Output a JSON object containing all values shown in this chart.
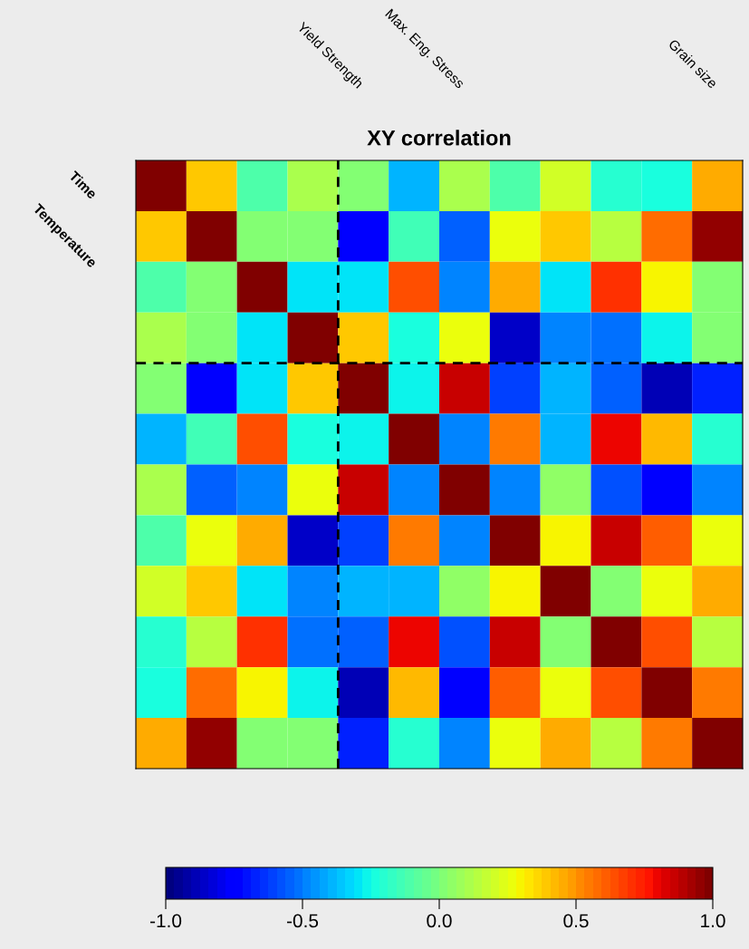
{
  "chart_data": {
    "type": "heatmap",
    "title": "XY correlation",
    "categories": [
      null,
      null,
      null,
      "Yield Strength",
      null,
      "Max. Eng. Stress",
      null,
      null,
      null,
      null,
      "Grain size",
      null
    ],
    "y_categories": [
      "Time",
      "Temperature",
      null,
      null,
      null,
      null,
      null,
      null,
      null,
      null,
      null,
      null
    ],
    "cells": [
      [
        1.0,
        0.4,
        -0.1,
        0.1,
        0.0,
        -0.4,
        0.1,
        -0.1,
        0.2,
        -0.2,
        -0.22,
        0.45
      ],
      [
        0.4,
        1.0,
        0.0,
        0.0,
        -0.72,
        -0.15,
        -0.55,
        0.25,
        0.4,
        0.15,
        0.58,
        0.95
      ],
      [
        -0.1,
        0.0,
        1.0,
        -0.3,
        -0.3,
        0.65,
        -0.5,
        0.45,
        -0.3,
        0.7,
        0.3,
        0.0
      ],
      [
        0.1,
        0.0,
        -0.3,
        1.0,
        0.4,
        -0.25,
        0.25,
        -0.85,
        -0.5,
        -0.52,
        -0.27,
        0.0
      ],
      [
        0.0,
        -0.72,
        -0.3,
        0.4,
        1.0,
        -0.27,
        0.85,
        -0.6,
        -0.4,
        -0.55,
        -0.88,
        -0.68
      ],
      [
        -0.4,
        -0.15,
        0.65,
        -0.25,
        -0.27,
        1.0,
        -0.5,
        0.55,
        -0.4,
        0.8,
        0.42,
        -0.2
      ],
      [
        0.1,
        -0.55,
        -0.5,
        0.25,
        0.85,
        -0.5,
        1.0,
        -0.5,
        0.05,
        -0.58,
        -0.78,
        -0.5
      ],
      [
        -0.1,
        0.25,
        0.45,
        -0.85,
        -0.6,
        0.55,
        -0.5,
        1.0,
        0.3,
        0.85,
        0.6,
        0.25
      ],
      [
        0.2,
        0.4,
        -0.3,
        -0.5,
        -0.4,
        -0.4,
        0.05,
        0.3,
        1.0,
        0.0,
        0.25,
        0.45
      ],
      [
        -0.2,
        0.15,
        0.7,
        -0.52,
        -0.55,
        0.8,
        -0.58,
        0.85,
        0.0,
        1.0,
        0.65,
        0.15
      ],
      [
        -0.22,
        0.58,
        0.3,
        -0.27,
        -0.88,
        0.42,
        -0.78,
        0.6,
        0.25,
        0.65,
        1.0,
        0.55
      ],
      [
        0.45,
        0.95,
        0.0,
        0.0,
        -0.68,
        -0.2,
        -0.5,
        0.25,
        0.45,
        0.15,
        0.55,
        1.0
      ]
    ],
    "clim": [
      -1.0,
      1.0
    ],
    "cticks": [
      {
        "value": -1.0,
        "label": "-1.0"
      },
      {
        "value": -0.5,
        "label": "-0.5"
      },
      {
        "value": 0.0,
        "label": "0.0"
      },
      {
        "value": 0.5,
        "label": "0.5"
      },
      {
        "value": 1.0,
        "label": "1.0"
      }
    ]
  }
}
